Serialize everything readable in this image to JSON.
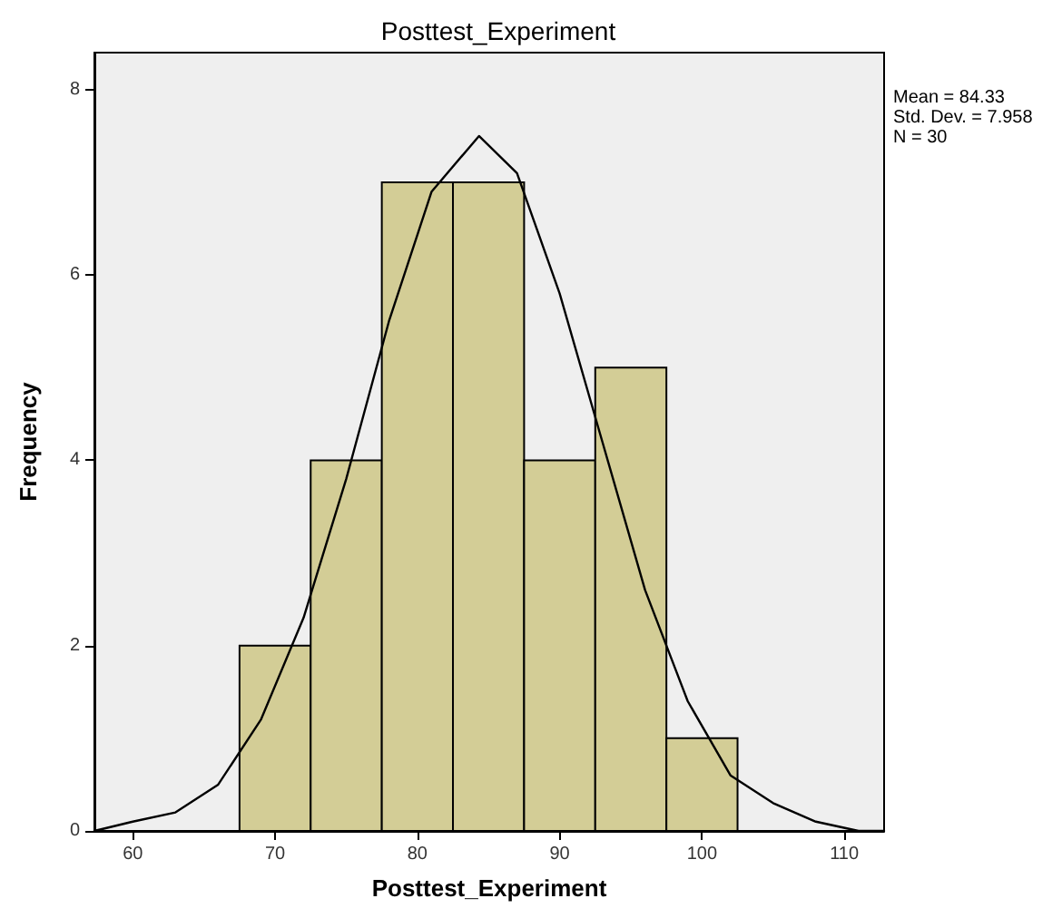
{
  "chart_data": {
    "type": "histogram",
    "title": "Posttest_Experiment",
    "xlabel": "Posttest_Experiment",
    "ylabel": "Frequency",
    "annotations": [
      "Mean = 84.33",
      "Std. Dev. = 7.958",
      "N = 30"
    ],
    "bins": [
      67.5,
      72.5,
      77.5,
      82.5,
      87.5,
      92.5,
      97.5,
      102.5
    ],
    "series": [
      {
        "color": "#d3cd96",
        "values": [
          2,
          4,
          7,
          7,
          4,
          5,
          1
        ]
      },
      {
        "type": "line",
        "color": "#000000",
        "x": [
          57.3,
          60,
          63,
          66,
          69,
          72,
          75,
          78,
          81,
          84.33,
          87,
          90,
          93,
          96,
          99,
          102,
          105,
          108,
          111,
          112.8
        ],
        "values": [
          0.0,
          0.1,
          0.2,
          0.5,
          1.2,
          2.3,
          3.8,
          5.5,
          6.9,
          7.5,
          7.1,
          5.8,
          4.2,
          2.6,
          1.4,
          0.6,
          0.3,
          0.1,
          0.0,
          0.0
        ]
      }
    ],
    "xlim": [
      57.3,
      112.8
    ],
    "xticks": [
      60,
      70,
      80,
      90,
      100,
      110
    ],
    "ylim": [
      0,
      8.4
    ],
    "yticks": [
      0,
      2,
      4,
      6,
      8
    ],
    "grid": false,
    "marker": "none",
    "line_style": "solid"
  }
}
